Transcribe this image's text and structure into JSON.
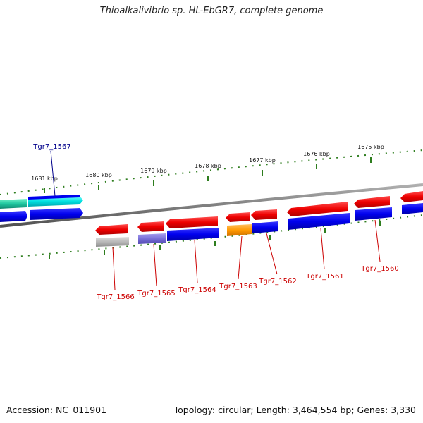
{
  "header": {
    "title": "Thioalkalivibrio sp. HL-EbGR7, complete genome"
  },
  "footer": {
    "accession": "Accession: NC_011901",
    "topology": "Topology: circular; Length: 3,464,554 bp; Genes: 3,330"
  },
  "scale_labels": [
    "1681 kbp",
    "1680 kbp",
    "1679 kbp",
    "1678 kbp",
    "1677 kbp",
    "1676 kbp",
    "1675 kbp"
  ],
  "gene_labels": {
    "top": [
      "Tgr7_1567"
    ],
    "bottom": [
      "Tgr7_1566",
      "Tgr7_1565",
      "Tgr7_1564",
      "Tgr7_1563",
      "Tgr7_1562",
      "Tgr7_1561",
      "Tgr7_1560"
    ]
  },
  "colors": {
    "backbone": "#808080",
    "tick": "#2e7d1e",
    "cds": "#0000ee",
    "rna": "#ee0000",
    "label_top": "#00008b",
    "label_bottom": "#cc0000",
    "teal": "#20c8a0",
    "cyan": "#00dcdc",
    "gray_gene": "#b0b0b0",
    "violet": "#7a70d8",
    "orange": "#ff9900"
  }
}
